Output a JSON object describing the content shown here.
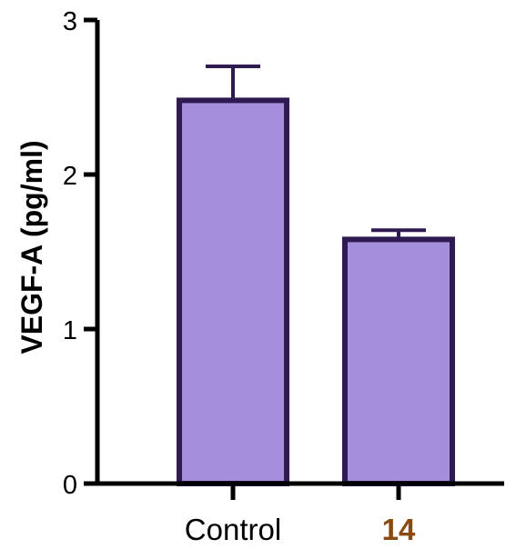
{
  "chart_data": {
    "type": "bar",
    "title": "",
    "xlabel": "",
    "ylabel": "VEGF-A (pg/ml)",
    "ylim": [
      0,
      3
    ],
    "yticks": [
      0,
      1,
      2,
      3
    ],
    "categories": [
      "Control",
      "14"
    ],
    "values": [
      2.48,
      1.58
    ],
    "errors": [
      0.22,
      0.06
    ],
    "grid": false,
    "legend": "none",
    "bar_fill": "#a48fdc",
    "bar_stroke": "#2f1a52",
    "axis_color": "#000000",
    "category_colors": [
      "#000000",
      "#8a4a12"
    ]
  }
}
